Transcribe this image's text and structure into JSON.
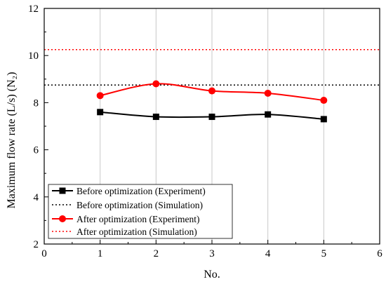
{
  "chart_data": {
    "type": "line",
    "xlabel": "No.",
    "ylabel": "Maximum flow rate (L/s) (N₂)",
    "xlim": [
      0,
      6
    ],
    "ylim": [
      2,
      12
    ],
    "xticks": [
      0,
      1,
      2,
      3,
      4,
      5,
      6
    ],
    "yticks": [
      2,
      4,
      6,
      8,
      10,
      12
    ],
    "grid": "vertical lines at x = 1 to 5",
    "legend_position": "bottom-left",
    "series": [
      {
        "name": "Before optimization (Experiment)",
        "style": "solid-square-markers",
        "color": "#000000",
        "x": [
          1,
          2,
          3,
          4,
          5
        ],
        "y": [
          7.6,
          7.4,
          7.4,
          7.5,
          7.3
        ]
      },
      {
        "name": "Before optimization (Simulation)",
        "style": "dotted",
        "color": "#000000",
        "y": 8.75
      },
      {
        "name": "After optimization (Experiment)",
        "style": "solid-circle-markers",
        "color": "#ff0000",
        "x": [
          1,
          2,
          3,
          4,
          5
        ],
        "y": [
          8.3,
          8.8,
          8.5,
          8.4,
          8.1
        ]
      },
      {
        "name": "After optimization (Simulation)",
        "style": "dotted",
        "color": "#ff0000",
        "y": 10.25
      }
    ]
  }
}
